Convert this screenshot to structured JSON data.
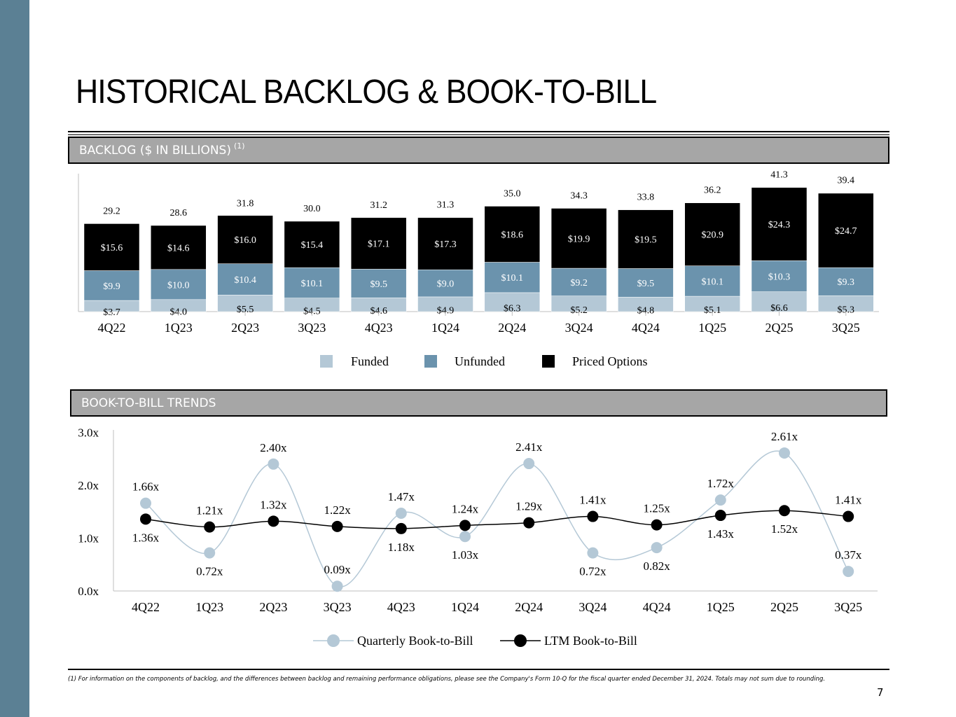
{
  "title": "HISTORICAL BACKLOG & BOOK-TO-BILL",
  "backlog_section": {
    "label": "BACKLOG ($ IN BILLIONS)",
    "footnote_ref": "(1)"
  },
  "btb_section": {
    "label": "BOOK-TO-BILL TRENDS"
  },
  "footnote": "(1) For information on the components of backlog, and the differences between backlog and remaining performance obligations, please see the Company's Form 10-Q for the fiscal quarter ended December 31, 2024. Totals may not sum due to rounding.",
  "page_number": "7",
  "colors": {
    "sidebar": "#5b8094",
    "funded": "#b4c8d6",
    "unfunded": "#6b93ad",
    "priced_options": "#000000",
    "quarterly_line": "#b4c8d6",
    "ltm_line": "#000000"
  },
  "chart_data": [
    {
      "type": "bar",
      "stacked": true,
      "categories": [
        "4Q22",
        "1Q23",
        "2Q23",
        "3Q23",
        "4Q23",
        "1Q24",
        "2Q24",
        "3Q24",
        "4Q24",
        "1Q25",
        "2Q25",
        "3Q25"
      ],
      "series": [
        {
          "name": "Funded",
          "color": "#b4c8d6",
          "values": [
            3.7,
            4.0,
            5.5,
            4.5,
            4.6,
            4.9,
            6.3,
            5.2,
            4.8,
            5.1,
            6.6,
            5.3
          ],
          "labels": [
            "$3.7",
            "$4.0",
            "$5.5",
            "$4.5",
            "$4.6",
            "$4.9",
            "$6.3",
            "$5.2",
            "$4.8",
            "$5.1",
            "$6.6",
            "$5.3"
          ]
        },
        {
          "name": "Unfunded",
          "color": "#6b93ad",
          "values": [
            9.9,
            10.0,
            10.4,
            10.1,
            9.5,
            9.0,
            10.1,
            9.2,
            9.5,
            10.1,
            10.3,
            9.3
          ],
          "labels": [
            "$9.9",
            "$10.0",
            "$10.4",
            "$10.1",
            "$9.5",
            "$9.0",
            "$10.1",
            "$9.2",
            "$9.5",
            "$10.1",
            "$10.3",
            "$9.3"
          ]
        },
        {
          "name": "Priced Options",
          "color": "#000000",
          "values": [
            15.6,
            14.6,
            16.0,
            15.4,
            17.1,
            17.3,
            18.6,
            19.9,
            19.5,
            20.9,
            24.3,
            24.7
          ],
          "labels": [
            "$15.6",
            "$14.6",
            "$16.0",
            "$15.4",
            "$17.1",
            "$17.3",
            "$18.6",
            "$19.9",
            "$19.5",
            "$20.9",
            "$24.3",
            "$24.7"
          ]
        }
      ],
      "totals": [
        29.2,
        28.6,
        31.8,
        30.0,
        31.2,
        31.3,
        35.0,
        34.3,
        33.8,
        36.2,
        41.3,
        39.4
      ],
      "total_labels": [
        "29.2",
        "28.6",
        "31.8",
        "30.0",
        "31.2",
        "31.3",
        "35.0",
        "34.3",
        "33.8",
        "36.2",
        "41.3",
        "39.4"
      ],
      "legend_position": "bottom-center",
      "grid": false
    },
    {
      "type": "line",
      "categories": [
        "4Q22",
        "1Q23",
        "2Q23",
        "3Q23",
        "4Q23",
        "1Q24",
        "2Q24",
        "3Q24",
        "4Q24",
        "1Q25",
        "2Q25",
        "3Q25"
      ],
      "ylim": [
        0.0,
        3.0
      ],
      "yticks": [
        "0.0x",
        "1.0x",
        "2.0x",
        "3.0x"
      ],
      "series": [
        {
          "name": "Quarterly Book-to-Bill",
          "color": "#b4c8d6",
          "values": [
            1.66,
            0.72,
            2.4,
            0.09,
            1.47,
            1.03,
            2.41,
            0.72,
            0.82,
            1.72,
            2.61,
            0.37
          ],
          "labels": [
            "1.66x",
            "0.72x",
            "2.40x",
            "0.09x",
            "1.47x",
            "1.03x",
            "2.41x",
            "0.72x",
            "0.82x",
            "1.72x",
            "2.61x",
            "0.37x"
          ],
          "label_pos": [
            "above",
            "below",
            "above",
            "above",
            "above",
            "below",
            "above",
            "below",
            "below",
            "above",
            "above",
            "above"
          ]
        },
        {
          "name": "LTM Book-to-Bill",
          "color": "#000000",
          "values": [
            1.36,
            1.21,
            1.32,
            1.22,
            1.18,
            1.24,
            1.29,
            1.41,
            1.25,
            1.43,
            1.52,
            1.41
          ],
          "labels": [
            "1.36x",
            "1.21x",
            "1.32x",
            "1.22x",
            "1.18x",
            "1.24x",
            "1.29x",
            "1.41x",
            "1.25x",
            "1.43x",
            "1.52x",
            "1.41x"
          ],
          "label_pos": [
            "below",
            "above",
            "above",
            "above",
            "below",
            "above",
            "above",
            "above",
            "above",
            "below",
            "below",
            "above"
          ]
        }
      ],
      "legend_position": "bottom-center",
      "grid": false
    }
  ]
}
